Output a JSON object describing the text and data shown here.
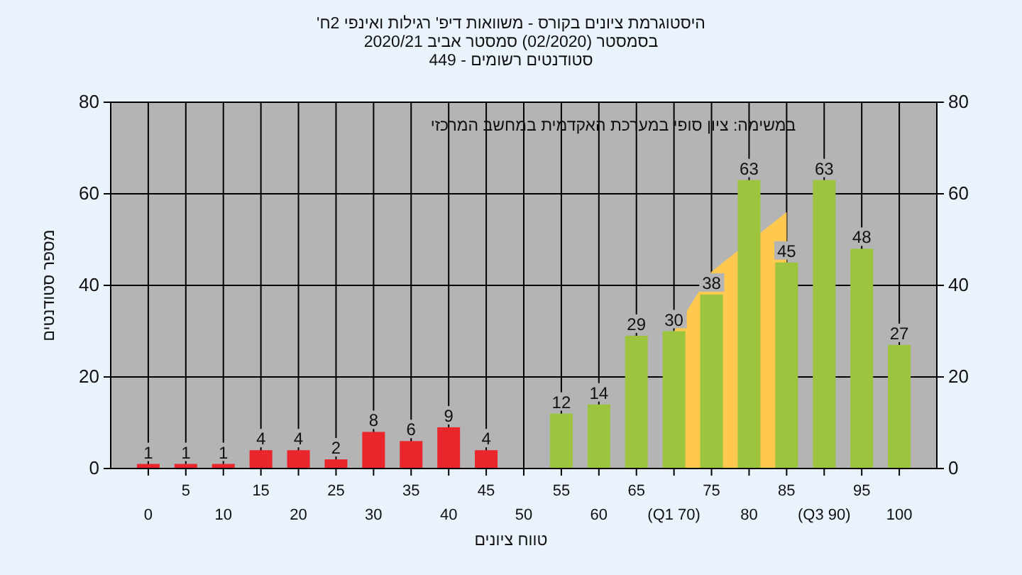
{
  "chart_data": {
    "type": "bar",
    "title": "היסטוגרמת ציונים בקורס - משוואות דיפ' רגילות ואינפי 2ח'",
    "subtitle": "בסמסטר (02/2020) סמסטר אביב 2020/21",
    "annotations": [
      "סטודנטים רשומים - 449",
      "במשימה: ציון סופי במערכת האקדמית במחשב המרכזי"
    ],
    "xlabel": "טווח ציונים",
    "ylabel": "מספר סטודנטים",
    "categories": [
      "0",
      "5",
      "10",
      "15",
      "20",
      "25",
      "30",
      "35",
      "40",
      "45",
      "50",
      "55",
      "60",
      "65",
      "(Q1 70)",
      "75",
      "80",
      "85",
      "(Q3 90)",
      "95",
      "100"
    ],
    "series": [
      {
        "type": "area",
        "color": "#ffc94f",
        "x": [
          "(Q1 70)",
          "75",
          "80",
          "85",
          "(Q3 90)"
        ],
        "values": [
          30,
          43,
          null,
          56,
          null
        ]
      },
      {
        "type": "bar",
        "colors": [
          "#e8262b",
          "#e8262b",
          "#e8262b",
          "#e8262b",
          "#e8262b",
          "#e8262b",
          "#e8262b",
          "#e8262b",
          "#e8262b",
          "#e8262b",
          null,
          "#9cc43f",
          "#9cc43f",
          "#9cc43f",
          "#9cc43f",
          "#9cc43f",
          "#9cc43f",
          "#9cc43f",
          "#9cc43f",
          "#9cc43f",
          "#9cc43f"
        ],
        "values": [
          1,
          1,
          1,
          4,
          4,
          2,
          8,
          6,
          9,
          4,
          null,
          12,
          14,
          29,
          30,
          38,
          63,
          45,
          63,
          48,
          27
        ],
        "value_labels": [
          "1",
          "1",
          "1",
          "4",
          "4",
          "2",
          "8",
          "6",
          "9",
          "4",
          null,
          "12",
          "14",
          "29",
          "30",
          "38",
          "63",
          "45",
          "63",
          "48",
          "27"
        ]
      }
    ],
    "grid": true,
    "ylim": [
      0,
      80
    ],
    "yticks": [
      0,
      20,
      40,
      60,
      80
    ],
    "y2lim": [
      0,
      80
    ],
    "y2ticks": [
      0,
      20,
      40,
      60,
      80
    ]
  }
}
